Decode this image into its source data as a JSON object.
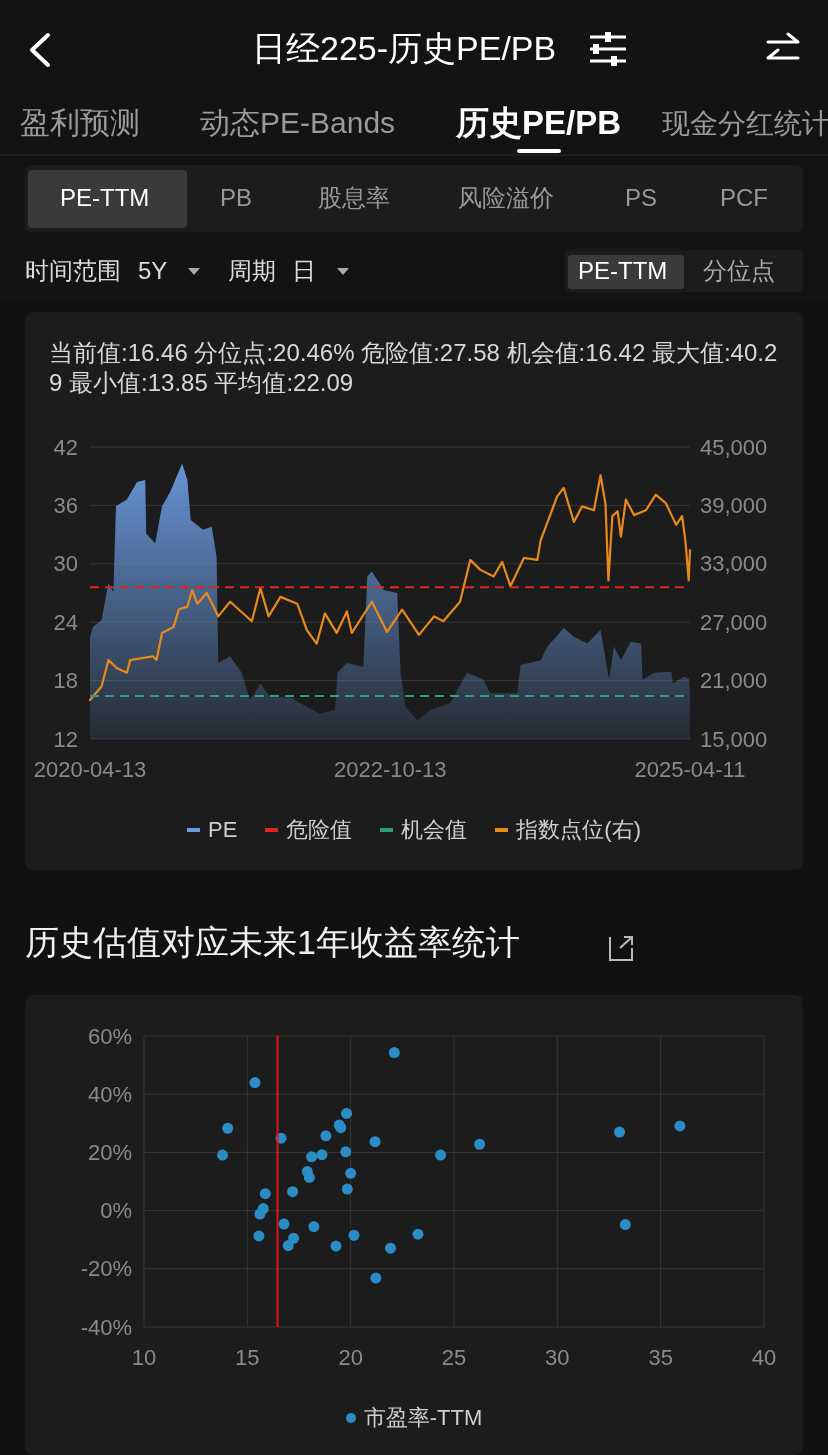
{
  "chart_data": [
    {
      "type": "other",
      "title": "日经225-历史PE/PB",
      "annotations": [
        "盈利预测",
        "动态PE-Bands",
        "历史PE/PB",
        "现金分红统计",
        "PE-TTM",
        "PB",
        "股息率",
        "风险溢价",
        "PS",
        "PCF",
        "时间范围",
        "5Y",
        "周期",
        "日",
        "PE-TTM",
        "分位点"
      ]
    },
    {
      "type": "area",
      "annotations": [
        "当前值:16.46",
        "分位点:20.46%",
        "危险值:27.58",
        "机会值:16.42",
        "最大值:40.29",
        "最小值:13.85",
        "平均值:22.09"
      ],
      "xlim": [
        "2020-04-13",
        "2025-04-11"
      ],
      "xticks": [
        "2020-04-13",
        "2022-10-13",
        "2025-04-11"
      ],
      "ylim": [
        12,
        42
      ],
      "yticks": [
        12,
        18,
        24,
        30,
        36,
        42
      ],
      "y2lim": [
        15000,
        45000
      ],
      "y2ticks": [
        {
          "value": 15000,
          "label": "15,000"
        },
        {
          "value": 21000,
          "label": "21,000"
        },
        {
          "value": 27000,
          "label": "27,000"
        },
        {
          "value": 33000,
          "label": "33,000"
        },
        {
          "value": 39000,
          "label": "39,000"
        },
        {
          "value": 45000,
          "label": "45,000"
        }
      ],
      "grid": "y",
      "legend": "bottom",
      "line_style": "solid",
      "series": [
        {
          "name": "PE",
          "type": "area",
          "color": "#6a9be0",
          "x": [
            "2020-04-13",
            "2020-04-22",
            "2020-05-18",
            "2020-06-08",
            "2020-06-23",
            "2020-07-01",
            "2020-08-03",
            "2020-09-03",
            "2020-09-28",
            "2020-10-01",
            "2020-10-28",
            "2020-11-18",
            "2020-12-13",
            "2021-01-18",
            "2021-02-03",
            "2021-02-13",
            "2021-03-23",
            "2021-04-18",
            "2021-05-03",
            "2021-05-08",
            "2021-06-13",
            "2021-07-18",
            "2021-08-13",
            "2021-09-13",
            "2021-10-13",
            "2021-12-13",
            "2022-02-01",
            "2022-03-13",
            "2022-04-28",
            "2022-05-05",
            "2022-06-03",
            "2022-07-23",
            "2022-08-04",
            "2022-08-18",
            "2022-09-23",
            "2022-11-03",
            "2022-11-13",
            "2022-11-28",
            "2023-01-03",
            "2023-02-13",
            "2023-04-13",
            "2023-06-03",
            "2023-07-23",
            "2023-08-13",
            "2023-11-03",
            "2023-11-13",
            "2024-01-13",
            "2024-02-03",
            "2024-03-23",
            "2024-04-23",
            "2024-06-03",
            "2024-07-13",
            "2024-08-08",
            "2024-08-23",
            "2024-09-13",
            "2024-10-13",
            "2024-11-13",
            "2024-11-18",
            "2024-12-23",
            "2025-02-13",
            "2025-02-18",
            "2025-03-23",
            "2025-04-08",
            "2025-04-11"
          ],
          "values": [
            22.5,
            23.5,
            24.2,
            28.0,
            27.1,
            35.9,
            36.6,
            38.4,
            38.6,
            33.1,
            32.1,
            35.9,
            37.4,
            40.3,
            38.6,
            34.5,
            33.5,
            33.8,
            30.7,
            19.8,
            20.5,
            18.8,
            16.0,
            17.7,
            16.3,
            16.3,
            15.3,
            14.6,
            15.0,
            18.8,
            19.8,
            19.4,
            28.7,
            29.2,
            27.3,
            27.0,
            18.8,
            15.3,
            13.9,
            15.0,
            15.7,
            18.8,
            18.1,
            16.7,
            16.7,
            19.6,
            20.1,
            21.5,
            23.4,
            22.5,
            21.8,
            23.2,
            18.1,
            21.5,
            20.1,
            22.0,
            21.8,
            18.1,
            18.8,
            18.9,
            17.7,
            18.4,
            18.2,
            16.5
          ]
        },
        {
          "name": "指数点位(右)",
          "type": "line",
          "axis": "y2",
          "color": "#e8891c",
          "x": [
            "2020-04-13",
            "2020-05-18",
            "2020-06-08",
            "2020-07-03",
            "2020-08-03",
            "2020-08-13",
            "2020-10-22",
            "2020-11-01",
            "2020-11-18",
            "2020-12-23",
            "2021-01-08",
            "2021-02-03",
            "2021-02-18",
            "2021-03-05",
            "2021-04-03",
            "2021-05-08",
            "2021-06-13",
            "2021-08-18",
            "2021-09-13",
            "2021-10-08",
            "2021-11-13",
            "2022-01-03",
            "2022-02-01",
            "2022-03-03",
            "2022-03-28",
            "2022-05-03",
            "2022-06-03",
            "2022-06-18",
            "2022-08-18",
            "2022-10-03",
            "2022-11-18",
            "2023-01-08",
            "2023-02-23",
            "2023-03-23",
            "2023-05-13",
            "2023-06-13",
            "2023-07-13",
            "2023-08-23",
            "2023-09-18",
            "2023-10-13",
            "2023-11-23",
            "2024-01-03",
            "2024-01-13",
            "2024-03-03",
            "2024-03-23",
            "2024-04-23",
            "2024-05-18",
            "2024-06-23",
            "2024-07-13",
            "2024-07-28",
            "2024-08-06",
            "2024-08-18",
            "2024-09-03",
            "2024-09-13",
            "2024-09-28",
            "2024-10-23",
            "2024-11-28",
            "2024-12-28",
            "2025-01-28",
            "2025-02-28",
            "2025-03-18",
            "2025-03-28",
            "2025-04-07",
            "2025-04-11"
          ],
          "values": [
            19000,
            20400,
            23100,
            22300,
            21800,
            23100,
            23500,
            23100,
            25900,
            26500,
            28300,
            28600,
            30300,
            28900,
            30000,
            27600,
            29100,
            27100,
            30500,
            27600,
            29600,
            28900,
            26200,
            24800,
            27900,
            25900,
            28100,
            25900,
            29100,
            26000,
            28300,
            25700,
            27600,
            27100,
            29100,
            33400,
            32400,
            31700,
            33200,
            30700,
            33600,
            33400,
            35400,
            39900,
            40800,
            37300,
            38900,
            38500,
            42100,
            39200,
            31300,
            37900,
            38400,
            35800,
            39600,
            38000,
            38500,
            40100,
            39200,
            37000,
            37900,
            35400,
            31300,
            34400
          ]
        }
      ],
      "ref_lines": [
        {
          "axis": "y",
          "value": 27.58,
          "label": "危险值",
          "color": "#e02424",
          "line_style": "dashed"
        },
        {
          "axis": "y",
          "value": 16.42,
          "label": "机会值",
          "color": "#2e9c80",
          "line_style": "dashed"
        }
      ]
    },
    {
      "type": "scatter",
      "title": "历史估值对应未来1年收益率统计",
      "xlim": [
        10,
        40
      ],
      "xticks": [
        10,
        15,
        20,
        25,
        30,
        35,
        40
      ],
      "ylim": [
        -40,
        60
      ],
      "yticks": [
        {
          "value": -40,
          "label": "-40%"
        },
        {
          "value": -20,
          "label": "-20%"
        },
        {
          "value": 0,
          "label": "0%"
        },
        {
          "value": 20,
          "label": "20%"
        },
        {
          "value": 40,
          "label": "40%"
        },
        {
          "value": 60,
          "label": "60%"
        }
      ],
      "grid": true,
      "legend": "bottom",
      "marker": "circle",
      "series": [
        {
          "name": "市盈率-TTM",
          "color": "#2a8dc5",
          "x": [
            22.11,
            15.37,
            14.05,
            13.8,
            16.63,
            19.8,
            19.45,
            19.52,
            18.8,
            21.18,
            18.11,
            18.61,
            19.76,
            24.35,
            17.9,
            18.0,
            20.0,
            19.84,
            15.87,
            17.19,
            15.77,
            15.61,
            16.77,
            18.22,
            15.56,
            17.24,
            16.98,
            19.29,
            20.16,
            21.93,
            23.26,
            21.22,
            26.24,
            33.01,
            35.93,
            33.29
          ],
          "values": [
            54.3,
            44.0,
            28.3,
            19.1,
            24.9,
            33.4,
            29.4,
            28.5,
            25.7,
            23.7,
            18.5,
            19.2,
            20.2,
            19.1,
            13.4,
            11.4,
            12.8,
            7.4,
            5.8,
            6.5,
            0.7,
            -1.2,
            -4.6,
            -5.5,
            -8.7,
            -9.5,
            -12.0,
            -12.2,
            -8.5,
            -12.9,
            -8.1,
            -23.2,
            22.8,
            27.0,
            29.1,
            -4.8
          ]
        }
      ],
      "ref_lines": [
        {
          "axis": "x",
          "value": 16.46,
          "color": "#e01414",
          "line_style": "solid"
        }
      ]
    }
  ]
}
